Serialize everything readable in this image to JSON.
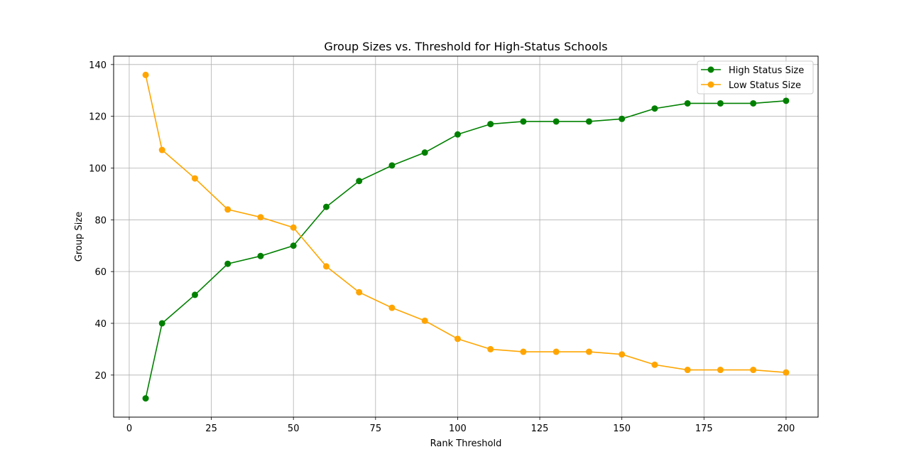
{
  "chart_data": {
    "type": "line",
    "title": "Group Sizes vs. Threshold for High-Status Schools",
    "xlabel": "Rank Threshold",
    "ylabel": "Group Size",
    "x": [
      5,
      10,
      20,
      30,
      40,
      50,
      60,
      70,
      80,
      90,
      100,
      110,
      120,
      130,
      140,
      150,
      160,
      170,
      180,
      190,
      200
    ],
    "series": [
      {
        "name": "High Status Size",
        "color": "#008000",
        "values": [
          11,
          40,
          51,
          63,
          66,
          70,
          85,
          95,
          101,
          106,
          113,
          117,
          118,
          118,
          118,
          119,
          123,
          125,
          125,
          125,
          126
        ]
      },
      {
        "name": "Low Status Size",
        "color": "#ffa500",
        "values": [
          136,
          107,
          96,
          84,
          81,
          77,
          62,
          52,
          46,
          41,
          34,
          30,
          29,
          29,
          29,
          28,
          24,
          22,
          22,
          22,
          21
        ]
      }
    ],
    "xlim": [
      -4.75,
      209.75
    ],
    "ylim": [
      3.75,
      143.25
    ],
    "xticks": [
      0,
      25,
      50,
      75,
      100,
      125,
      150,
      175,
      200
    ],
    "yticks": [
      20,
      40,
      60,
      80,
      100,
      120,
      140
    ],
    "grid": true,
    "legend_position": "top-right",
    "marker": "circle"
  }
}
